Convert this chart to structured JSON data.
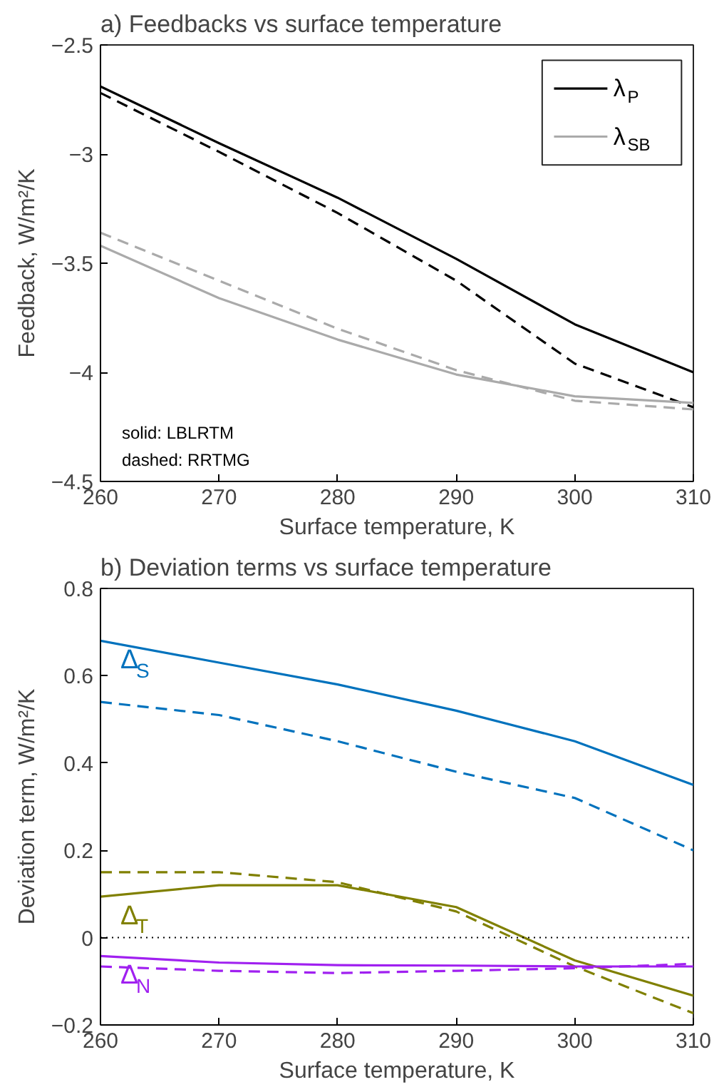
{
  "chart_data": [
    {
      "type": "line",
      "title": "a) Feedbacks vs surface temperature",
      "xlabel": "Surface temperature, K",
      "ylabel": "Feedback, W/m²/K",
      "x": [
        260,
        270,
        280,
        290,
        300,
        310
      ],
      "xlim": [
        260,
        310
      ],
      "xticks": [
        260,
        270,
        280,
        290,
        300,
        310
      ],
      "ylim": [
        -4.5,
        -2.5
      ],
      "yticks": [
        -4.5,
        -4,
        -3.5,
        -3,
        -2.5
      ],
      "grid": false,
      "legend": "top right",
      "series": [
        {
          "name": "λ$_{P}$",
          "color": "#000000",
          "line_style": "solid",
          "values": [
            -2.69,
            -2.95,
            -3.2,
            -3.48,
            -3.78,
            -4.0
          ]
        },
        {
          "color": "#000000",
          "line_style": "dashed",
          "values": [
            -2.72,
            -2.99,
            -3.27,
            -3.58,
            -3.96,
            -4.16
          ]
        },
        {
          "name": "λ$_{SB}$",
          "color": "#aaaaaa",
          "line_style": "solid",
          "values": [
            -3.42,
            -3.66,
            -3.85,
            -4.01,
            -4.11,
            -4.14
          ]
        },
        {
          "color": "#aaaaaa",
          "line_style": "dashed",
          "values": [
            -3.36,
            -3.58,
            -3.8,
            -3.99,
            -4.13,
            -4.17
          ]
        }
      ],
      "annotations": [
        "solid: LBLRTM",
        "dashed: RRTMG"
      ]
    },
    {
      "type": "line",
      "title": "b) Deviation terms vs surface temperature",
      "xlabel": "Surface temperature, K",
      "ylabel": "Deviation term, W/m²/K",
      "x": [
        260,
        270,
        280,
        290,
        300,
        310
      ],
      "xlim": [
        260,
        310
      ],
      "xticks": [
        260,
        270,
        280,
        290,
        300,
        310
      ],
      "ylim": [
        -0.2,
        0.8
      ],
      "yticks": [
        -0.2,
        0,
        0.2,
        0.4,
        0.6,
        0.8
      ],
      "grid": false,
      "legend": false,
      "ref_lines": [
        {
          "axis": "y",
          "value": 0,
          "color": "#000000",
          "line_style": "dotted"
        }
      ],
      "series": [
        {
          "name": "Δ$_{S}$",
          "color": "#0072bd",
          "line_style": "solid",
          "values": [
            0.68,
            0.63,
            0.58,
            0.52,
            0.45,
            0.35
          ]
        },
        {
          "color": "#0072bd",
          "line_style": "dashed",
          "values": [
            0.54,
            0.51,
            0.45,
            0.38,
            0.32,
            0.2
          ]
        },
        {
          "name": "Δ$_{T}$",
          "color": "#808000",
          "line_style": "solid",
          "values": [
            0.094,
            0.12,
            0.12,
            0.07,
            -0.052,
            -0.133
          ]
        },
        {
          "color": "#808000",
          "line_style": "dashed",
          "values": [
            0.15,
            0.15,
            0.127,
            0.06,
            -0.066,
            -0.173
          ]
        },
        {
          "name": "Δ$_{N}$",
          "color": "#a020f0",
          "line_style": "solid",
          "values": [
            -0.042,
            -0.057,
            -0.063,
            -0.064,
            -0.066,
            -0.066
          ]
        },
        {
          "color": "#a020f0",
          "line_style": "dashed",
          "values": [
            -0.066,
            -0.076,
            -0.081,
            -0.076,
            -0.07,
            -0.06
          ]
        }
      ]
    }
  ]
}
